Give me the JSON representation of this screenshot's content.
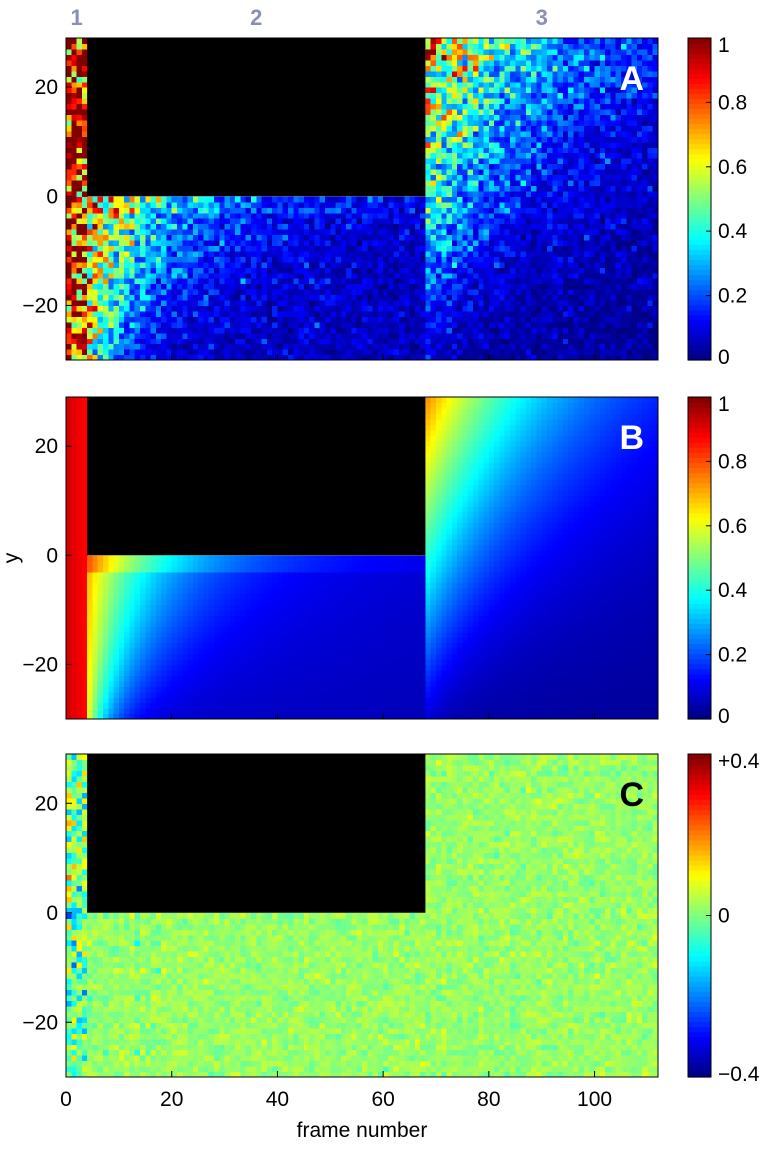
{
  "chart_data": [
    {
      "type": "heatmap",
      "panel_label": "A",
      "region_labels": [
        "1",
        "2",
        "3"
      ],
      "region_boundaries_frame": [
        4,
        68
      ],
      "masked_region": {
        "x_range": [
          4,
          68
        ],
        "y_range": [
          0,
          29
        ]
      },
      "xlim": [
        0,
        112
      ],
      "ylim": [
        -30,
        29
      ],
      "yticks": [
        20,
        0,
        -20
      ],
      "ytick_labels": [
        "20",
        "0",
        "−20"
      ],
      "xlabel": "",
      "ylabel": "",
      "colormap": "jet",
      "color_range": [
        0,
        1
      ],
      "colorbar_ticks": [
        1,
        0.8,
        0.6,
        0.4,
        0.2,
        0
      ],
      "colorbar_tick_labels": [
        "1",
        "0.8",
        "0.6",
        "0.4",
        "0.2",
        "0"
      ],
      "description_values": {
        "region1_value": 0.9,
        "region2_lower_decay": 0.15,
        "region3_upper_decay": 0.2
      },
      "noisy": true
    },
    {
      "type": "heatmap",
      "panel_label": "B",
      "masked_region": {
        "x_range": [
          4,
          68
        ],
        "y_range": [
          0,
          29
        ]
      },
      "xlim": [
        0,
        112
      ],
      "ylim": [
        -30,
        29
      ],
      "yticks": [
        20,
        0,
        -20
      ],
      "ytick_labels": [
        "20",
        "0",
        "−20"
      ],
      "xlabel": "",
      "ylabel": "y",
      "colormap": "jet",
      "color_range": [
        0,
        1
      ],
      "colorbar_ticks": [
        1,
        0.8,
        0.6,
        0.4,
        0.2,
        0
      ],
      "colorbar_tick_labels": [
        "1",
        "0.8",
        "0.6",
        "0.4",
        "0.2",
        "0"
      ],
      "noisy": false
    },
    {
      "type": "heatmap",
      "panel_label": "C",
      "masked_region": {
        "x_range": [
          4,
          68
        ],
        "y_range": [
          0,
          29
        ]
      },
      "xlim": [
        0,
        112
      ],
      "ylim": [
        -30,
        29
      ],
      "xticks": [
        0,
        20,
        40,
        60,
        80,
        100
      ],
      "xtick_labels": [
        "0",
        "20",
        "40",
        "60",
        "80",
        "100"
      ],
      "yticks": [
        20,
        0,
        -20
      ],
      "ytick_labels": [
        "20",
        "0",
        "−20"
      ],
      "xlabel": "frame number",
      "ylabel": "",
      "colormap": "jet",
      "color_range": [
        -0.4,
        0.4
      ],
      "colorbar_ticks": [
        0.4,
        0,
        -0.4
      ],
      "colorbar_tick_labels": [
        "+0.4",
        "0",
        "−0.4"
      ],
      "noisy": true
    }
  ],
  "colors": {
    "region_label": "#8a8fb8",
    "mask": "#000000",
    "panel_label": "#ffffff",
    "panel_label_c": "#000000"
  }
}
